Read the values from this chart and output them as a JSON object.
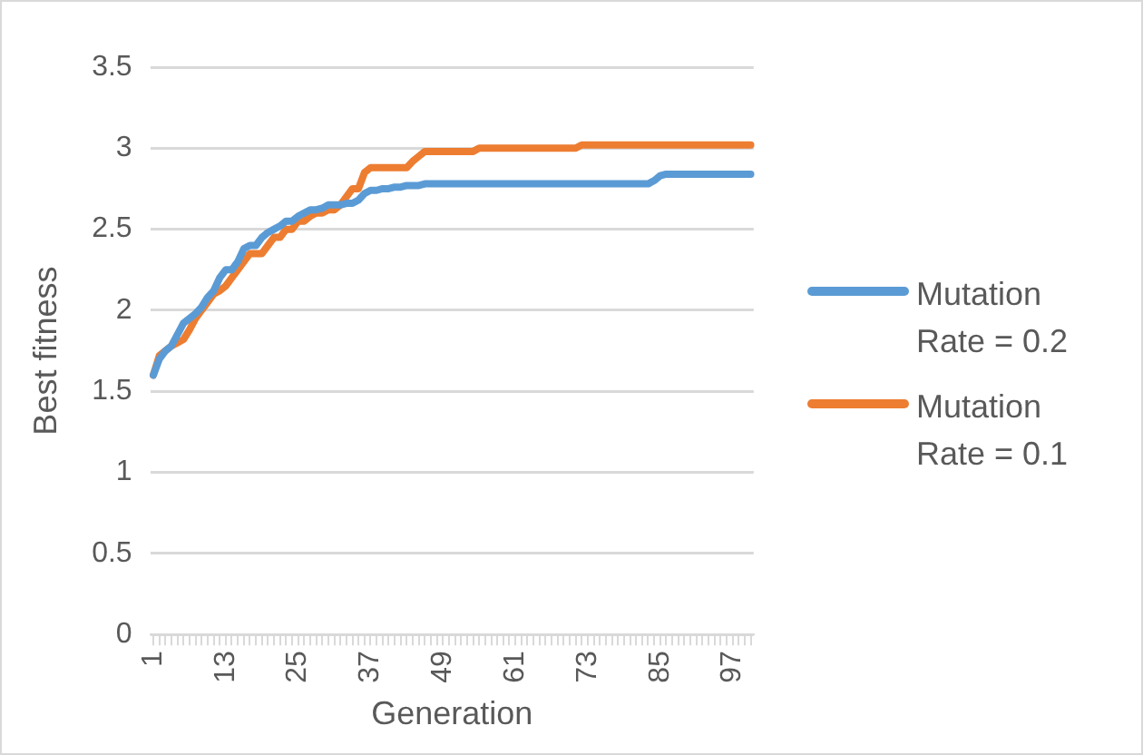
{
  "chart_data": {
    "type": "line",
    "xlabel": "Generation",
    "ylabel": "Best fitness",
    "categories": [
      "1",
      null,
      null,
      null,
      null,
      null,
      null,
      null,
      null,
      null,
      null,
      null,
      "13",
      null,
      null,
      null,
      null,
      null,
      null,
      null,
      null,
      null,
      null,
      null,
      "25",
      null,
      null,
      null,
      null,
      null,
      null,
      null,
      null,
      null,
      null,
      null,
      "37",
      null,
      null,
      null,
      null,
      null,
      null,
      null,
      null,
      null,
      null,
      null,
      "49",
      null,
      null,
      null,
      null,
      null,
      null,
      null,
      null,
      null,
      null,
      null,
      "61",
      null,
      null,
      null,
      null,
      null,
      null,
      null,
      null,
      null,
      null,
      null,
      "73",
      null,
      null,
      null,
      null,
      null,
      null,
      null,
      null,
      null,
      null,
      null,
      "85",
      null,
      null,
      null,
      null,
      null,
      null,
      null,
      null,
      null,
      null,
      null,
      "97",
      null,
      null,
      null
    ],
    "series": [
      {
        "name": "Mutation Rate = 0.2",
        "color": "#5b9bd5",
        "values": [
          1.6,
          1.7,
          1.75,
          1.78,
          1.85,
          1.92,
          1.95,
          1.98,
          2.02,
          2.08,
          2.12,
          2.2,
          2.25,
          2.25,
          2.3,
          2.38,
          2.4,
          2.4,
          2.45,
          2.48,
          2.5,
          2.52,
          2.55,
          2.55,
          2.58,
          2.6,
          2.62,
          2.62,
          2.63,
          2.65,
          2.65,
          2.65,
          2.66,
          2.66,
          2.68,
          2.72,
          2.74,
          2.74,
          2.75,
          2.75,
          2.76,
          2.76,
          2.77,
          2.77,
          2.77,
          2.78,
          2.78,
          2.78,
          2.78,
          2.78,
          2.78,
          2.78,
          2.78,
          2.78,
          2.78,
          2.78,
          2.78,
          2.78,
          2.78,
          2.78,
          2.78,
          2.78,
          2.78,
          2.78,
          2.78,
          2.78,
          2.78,
          2.78,
          2.78,
          2.78,
          2.78,
          2.78,
          2.78,
          2.78,
          2.78,
          2.78,
          2.78,
          2.78,
          2.78,
          2.78,
          2.78,
          2.78,
          2.78,
          2.8,
          2.83,
          2.84,
          2.84,
          2.84,
          2.84,
          2.84,
          2.84,
          2.84,
          2.84,
          2.84,
          2.84,
          2.84,
          2.84,
          2.84,
          2.84,
          2.84
        ]
      },
      {
        "name": "Mutation Rate = 0.1",
        "color": "#ed7d31",
        "values": [
          1.6,
          1.72,
          1.75,
          1.78,
          1.8,
          1.82,
          1.88,
          1.95,
          2.0,
          2.05,
          2.1,
          2.12,
          2.15,
          2.2,
          2.25,
          2.3,
          2.35,
          2.35,
          2.35,
          2.4,
          2.45,
          2.45,
          2.5,
          2.5,
          2.55,
          2.55,
          2.58,
          2.6,
          2.6,
          2.62,
          2.62,
          2.65,
          2.7,
          2.75,
          2.75,
          2.85,
          2.88,
          2.88,
          2.88,
          2.88,
          2.88,
          2.88,
          2.88,
          2.92,
          2.95,
          2.98,
          2.98,
          2.98,
          2.98,
          2.98,
          2.98,
          2.98,
          2.98,
          2.98,
          3.0,
          3.0,
          3.0,
          3.0,
          3.0,
          3.0,
          3.0,
          3.0,
          3.0,
          3.0,
          3.0,
          3.0,
          3.0,
          3.0,
          3.0,
          3.0,
          3.0,
          3.02,
          3.02,
          3.02,
          3.02,
          3.02,
          3.02,
          3.02,
          3.02,
          3.02,
          3.02,
          3.02,
          3.02,
          3.02,
          3.02,
          3.02,
          3.02,
          3.02,
          3.02,
          3.02,
          3.02,
          3.02,
          3.02,
          3.02,
          3.02,
          3.02,
          3.02,
          3.02,
          3.02,
          3.02
        ]
      }
    ],
    "ylim": [
      0,
      3.5
    ],
    "yticks": [
      0,
      0.5,
      1,
      1.5,
      2,
      2.5,
      3,
      3.5
    ],
    "grid": "y",
    "legend": "right",
    "marker": "none",
    "line_style": "solid"
  }
}
